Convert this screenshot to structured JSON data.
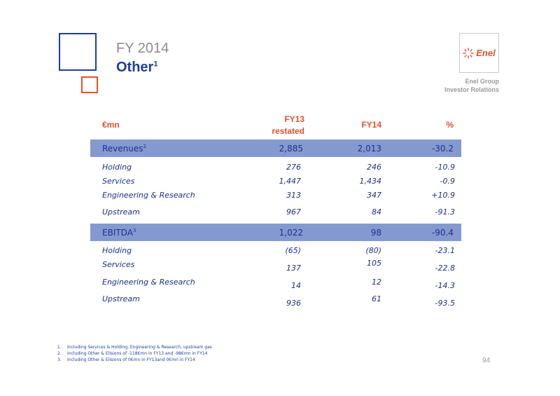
{
  "header": {
    "subtitle": "FY 2014",
    "title": "Other",
    "title_sup": "1",
    "logo_text": "Enel",
    "org_line1": "Enel Group",
    "org_line2": "Investor Relations"
  },
  "table": {
    "col_label": "€mn",
    "col_fy13_line1": "FY13",
    "col_fy13_line2": "restated",
    "col_fy14": "FY14",
    "col_pct": "%",
    "revenues": {
      "label": "Revenues",
      "sup": "2",
      "fy13": "2,885",
      "fy14": "2,013",
      "pct": "-30.2"
    },
    "revenue_rows": [
      {
        "label": "Holding",
        "fy13": "276",
        "fy14": "246",
        "pct": "-10.9"
      },
      {
        "label": "Services",
        "fy13": "1,447",
        "fy14": "1,434",
        "pct": "-0.9"
      },
      {
        "label": "Engineering & Research",
        "fy13": "313",
        "fy14": "347",
        "pct": "+10.9"
      },
      {
        "label": "Upstream",
        "fy13": "967",
        "fy14": "84",
        "pct": "-91.3"
      }
    ],
    "ebitda": {
      "label": "EBITDA",
      "sup": "3",
      "fy13": "1,022",
      "fy14": "98",
      "pct": "-90.4"
    },
    "ebitda_rows": [
      {
        "label": "Holding",
        "fy13": "(65)",
        "fy14": "(80)",
        "pct": "-23.1"
      },
      {
        "label": "Services",
        "fy13": "137",
        "fy14": "105",
        "pct": "-22.8"
      },
      {
        "label": "Engineering & Research",
        "fy13": "14",
        "fy14": "12",
        "pct": "-14.3"
      },
      {
        "label": "Upstream",
        "fy13": "936",
        "fy14": "61",
        "pct": "-93.5"
      }
    ]
  },
  "footnotes": [
    {
      "num": "1.",
      "text": "Including Services & Holding, Engineering & Research, upstream gas"
    },
    {
      "num": "2.",
      "text": "Including Other & Elisions of -118€mn in FY13 and -98€mn in FY14"
    },
    {
      "num": "3.",
      "text": "Including Other & Elisions of 0€mn in FY13and 0€mn in FY14"
    }
  ],
  "page_number": "94",
  "colors": {
    "blue": "#1f3f9a",
    "orange": "#e0522a",
    "band": "#8599d1",
    "text_blue": "#1f2f86"
  }
}
